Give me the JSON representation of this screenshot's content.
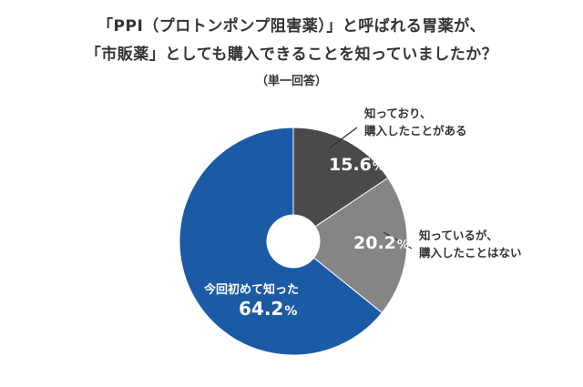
{
  "title_lines": [
    "「PPI（プロトンポンプ阻害薬）」と呼ばれる胃薬が、",
    "「市販薬」としても購入できることを知っていましたか？"
  ],
  "subtitle": "（単一回答）",
  "chart_data": {
    "type": "pie",
    "style": "donut",
    "title": "「PPI（プロトンポンプ阻害薬）」と呼ばれる胃薬が、「市販薬」としても購入できることを知っていましたか？",
    "subtitle": "（単一回答）",
    "unit": "%",
    "start": "12 o'clock, clockwise",
    "slices": [
      {
        "label_lines": [
          "知っており、",
          "購入したことがある"
        ],
        "value": 15.6,
        "display": "15.6%",
        "color": "#4a4a4a",
        "label_placement": "outside-right"
      },
      {
        "label_lines": [
          "知っているが、",
          "購入したことはない"
        ],
        "value": 20.2,
        "display": "20.2%",
        "color": "#858585",
        "label_placement": "outside-right"
      },
      {
        "label_lines": [
          "今回初めて知った"
        ],
        "value": 64.2,
        "display": "64.2%",
        "color": "#1b5aa5",
        "label_placement": "inside"
      }
    ]
  }
}
